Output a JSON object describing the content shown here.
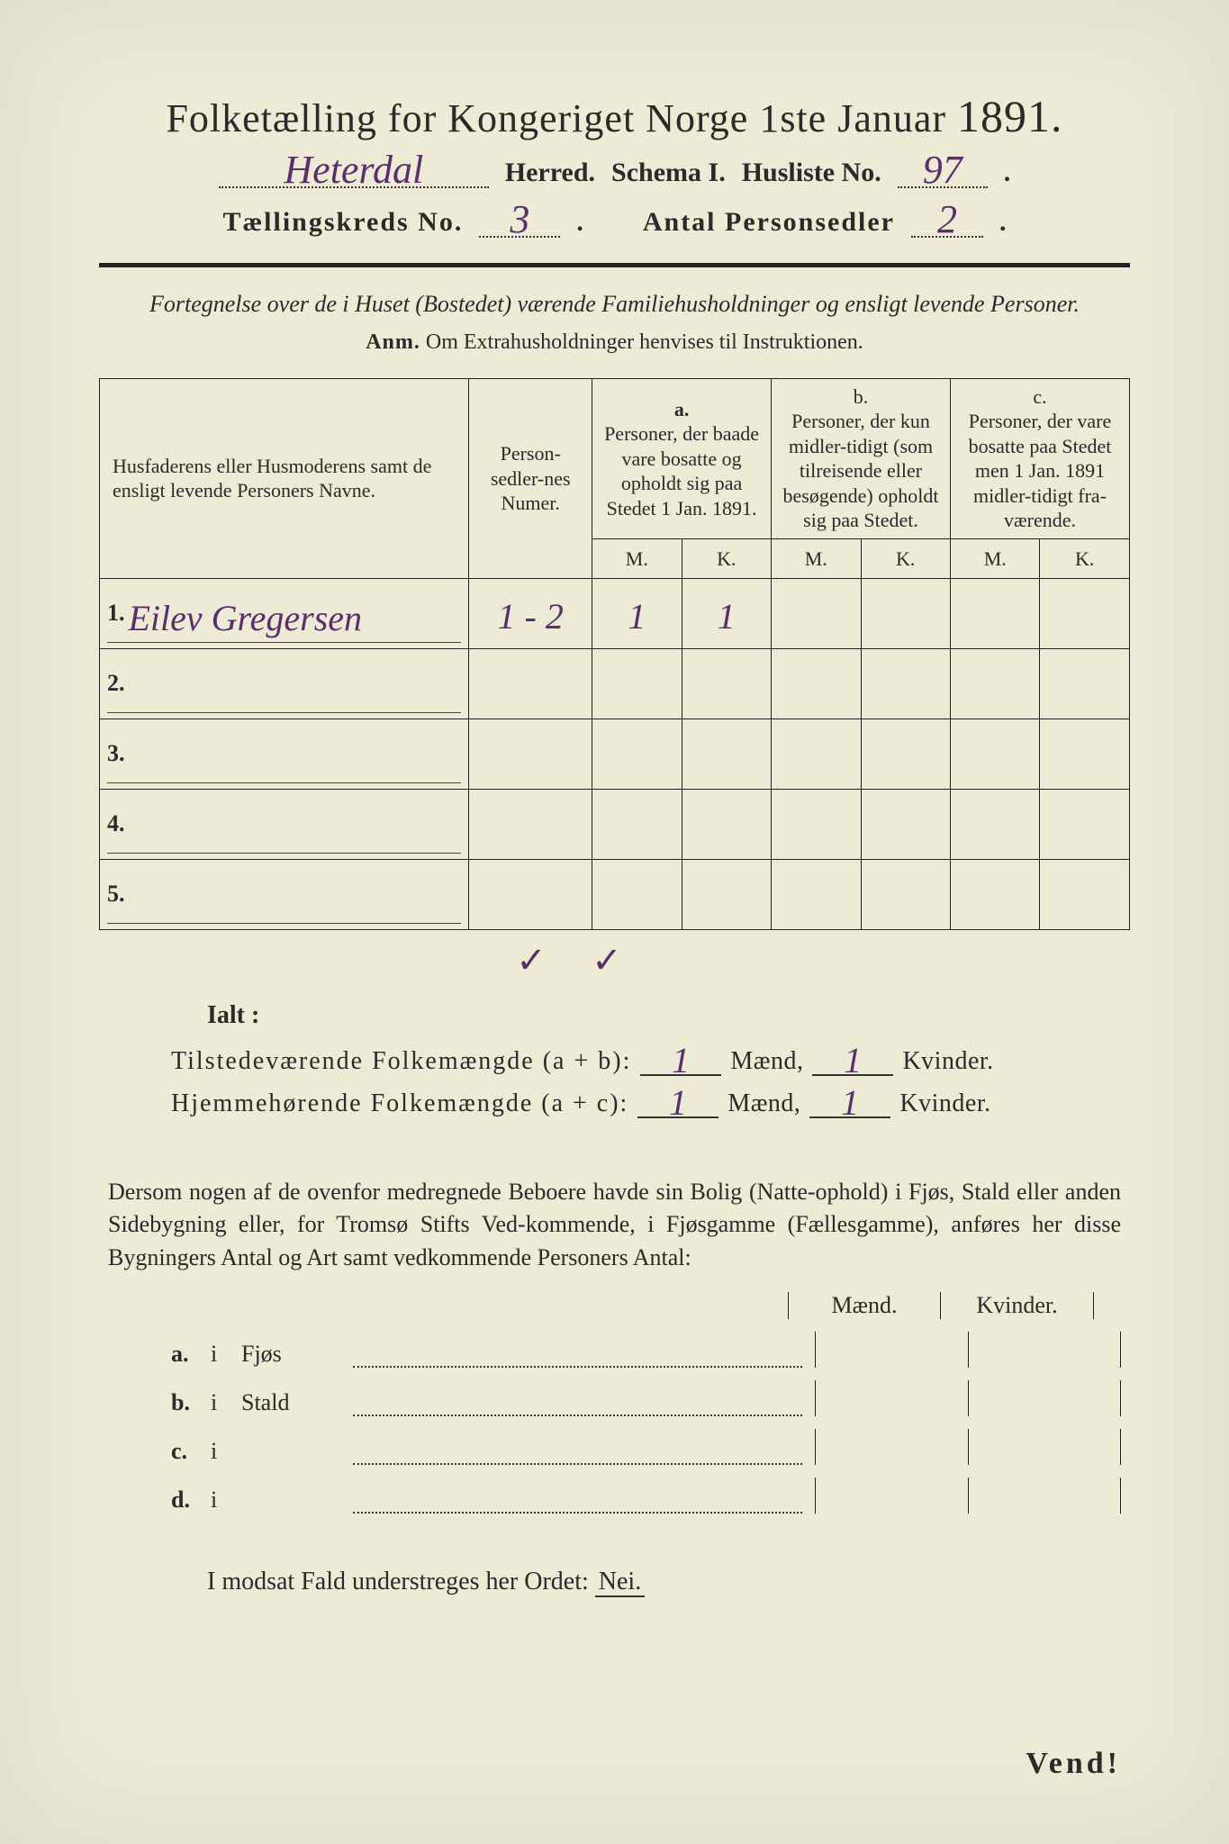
{
  "header": {
    "title_pre": "Folketælling for Kongeriget Norge 1ste Januar",
    "title_year": "1891.",
    "herred_value": "Heterdal",
    "herred_label": "Herred.",
    "schema_label": "Schema I.",
    "husliste_label": "Husliste No.",
    "husliste_value": "97",
    "kreds_label": "Tællingskreds No.",
    "kreds_value": "3",
    "antal_label": "Antal Personsedler",
    "antal_value": "2"
  },
  "subtitle": "Fortegnelse over de i Huset (Bostedet) værende Familiehusholdninger og ensligt levende Personer.",
  "anm_label": "Anm.",
  "anm_text": "Om Extrahusholdninger henvises til Instruktionen.",
  "table": {
    "col_name": "Husfaderens eller Husmoderens samt de ensligt levende Personers Navne.",
    "col_num": "Person-sedler-nes Numer.",
    "col_a_tag": "a.",
    "col_a": "Personer, der baade vare bosatte og opholdt sig paa Stedet 1 Jan. 1891.",
    "col_b_tag": "b.",
    "col_b": "Personer, der kun midler-tidigt (som tilreisende eller besøgende) opholdt sig paa Stedet.",
    "col_c_tag": "c.",
    "col_c": "Personer, der vare bosatte paa Stedet men 1 Jan. 1891 midler-tidigt fra-værende.",
    "M": "M.",
    "K": "K.",
    "rows": [
      {
        "n": "1.",
        "name": "Eilev Gregersen",
        "num": "1 - 2",
        "aM": "1",
        "aK": "1",
        "bM": "",
        "bK": "",
        "cM": "",
        "cK": ""
      },
      {
        "n": "2.",
        "name": "",
        "num": "",
        "aM": "",
        "aK": "",
        "bM": "",
        "bK": "",
        "cM": "",
        "cK": ""
      },
      {
        "n": "3.",
        "name": "",
        "num": "",
        "aM": "",
        "aK": "",
        "bM": "",
        "bK": "",
        "cM": "",
        "cK": ""
      },
      {
        "n": "4.",
        "name": "",
        "num": "",
        "aM": "",
        "aK": "",
        "bM": "",
        "bK": "",
        "cM": "",
        "cK": ""
      },
      {
        "n": "5.",
        "name": "",
        "num": "",
        "aM": "",
        "aK": "",
        "bM": "",
        "bK": "",
        "cM": "",
        "cK": ""
      }
    ],
    "checks": {
      "aM": "✓",
      "aK": "✓"
    }
  },
  "ialt": "Ialt :",
  "sum1_label": "Tilstedeværende Folkemængde (a + b):",
  "sum2_label": "Hjemmehørende Folkemængde (a + c):",
  "maend": "Mænd,",
  "kvinder": "Kvinder.",
  "sum1_m": "1",
  "sum1_k": "1",
  "sum2_m": "1",
  "sum2_k": "1",
  "para": "Dersom nogen af de ovenfor medregnede Beboere havde sin Bolig (Natte-ophold) i Fjøs, Stald eller anden Sidebygning eller, for Tromsø Stifts Ved-kommende, i Fjøsgamme (Fællesgamme), anføres her disse Bygningers Antal og Art samt vedkommende Personers Antal:",
  "mk_m": "Mænd.",
  "mk_k": "Kvinder.",
  "lines": [
    {
      "tag": "a.",
      "i": "i",
      "label": "Fjøs"
    },
    {
      "tag": "b.",
      "i": "i",
      "label": "Stald"
    },
    {
      "tag": "c.",
      "i": "i",
      "label": ""
    },
    {
      "tag": "d.",
      "i": "i",
      "label": ""
    }
  ],
  "modsat": "I modsat Fald understreges her Ordet:",
  "nei": "Nei.",
  "vend": "Vend!"
}
